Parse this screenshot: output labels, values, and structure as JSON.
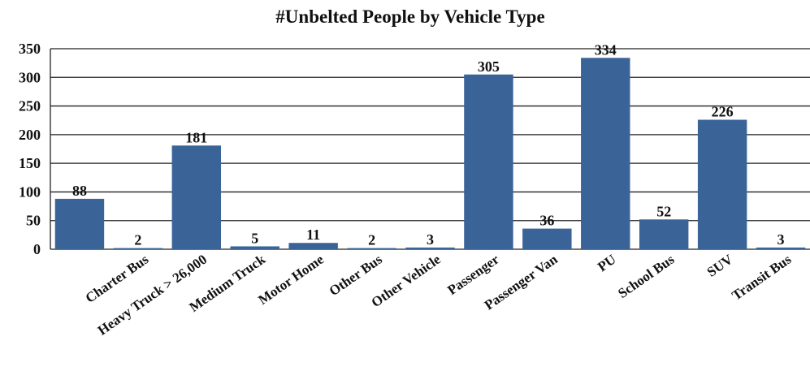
{
  "chart_data": {
    "type": "bar",
    "title": "#Unbelted People by Vehicle Type",
    "categories": [
      null,
      "Charter Bus",
      "Heavy Truck > 26,000",
      "Medium Truck",
      "Motor Home",
      "Other Bus",
      "Other Vehicle",
      "Passenger",
      "Passenger Van",
      "PU",
      "School Bus",
      "SUV",
      "Transit Bus"
    ],
    "values": [
      88,
      2,
      181,
      5,
      11,
      2,
      3,
      305,
      36,
      334,
      52,
      226,
      3
    ],
    "color": "#3a6397",
    "ylim": [
      0,
      350
    ],
    "yticks": [
      0,
      50,
      100,
      150,
      200,
      250,
      300,
      350
    ],
    "grid": true
  }
}
